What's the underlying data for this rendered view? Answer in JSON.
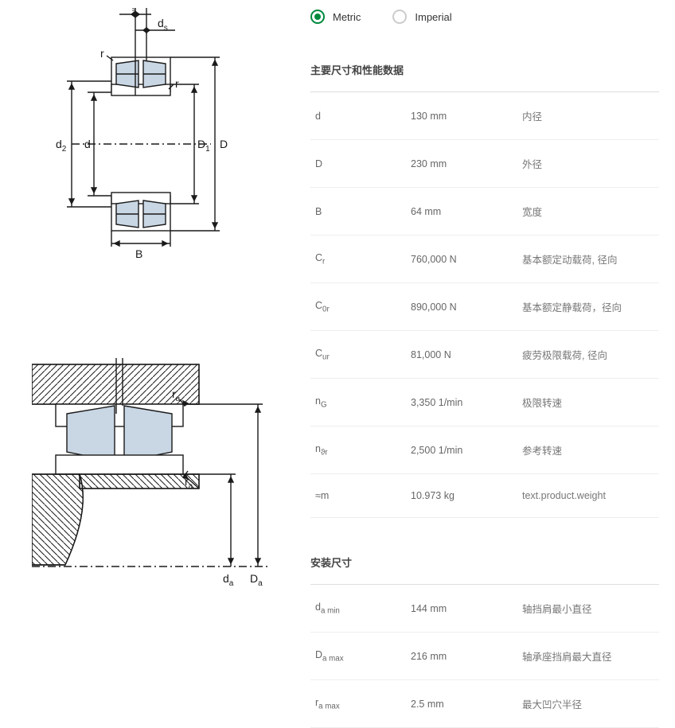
{
  "units": {
    "metric_label": "Metric",
    "imperial_label": "Imperial",
    "selected": "metric"
  },
  "sections": {
    "main": {
      "title": "主要尺寸和性能数据",
      "rows": [
        {
          "sym": "d",
          "sub": "",
          "val": "130 mm",
          "desc": "内径"
        },
        {
          "sym": "D",
          "sub": "",
          "val": "230 mm",
          "desc": "外径"
        },
        {
          "sym": "B",
          "sub": "",
          "val": "64 mm",
          "desc": "宽度"
        },
        {
          "sym": "C",
          "sub": "r",
          "val": "760,000 N",
          "desc": "基本额定动载荷, 径向"
        },
        {
          "sym": "C",
          "sub": "0r",
          "val": "890,000 N",
          "desc": "基本额定静载荷，径向"
        },
        {
          "sym": "C",
          "sub": "ur",
          "val": "81,000 N",
          "desc": "疲劳极限载荷, 径向"
        },
        {
          "sym": "n",
          "sub": "G",
          "val": "3,350 1/min",
          "desc": "极限转速"
        },
        {
          "sym": "n",
          "sub": "ϑr",
          "val": "2,500 1/min",
          "desc": "参考转速"
        },
        {
          "sym": "≈m",
          "sub": "",
          "val": "10.973 kg",
          "desc": "text.product.weight"
        }
      ]
    },
    "mounting": {
      "title": "安装尺寸",
      "rows": [
        {
          "sym": "d",
          "sub": "a min",
          "val": "144 mm",
          "desc": "轴挡肩最小直径"
        },
        {
          "sym": "D",
          "sub": "a max",
          "val": "216 mm",
          "desc": "轴承座挡肩最大直径"
        },
        {
          "sym": "r",
          "sub": "a max",
          "val": "2.5 mm",
          "desc": "最大凹穴半径"
        }
      ]
    }
  },
  "diagram1": {
    "labels": {
      "ns": "n",
      "ns_sub": "s",
      "ds": "d",
      "ds_sub": "s",
      "r1": "r",
      "r2": "r",
      "d2": "d",
      "d2_sub": "2",
      "d": "d",
      "D1": "D",
      "D1_sub": "1",
      "D": "D",
      "B": "B"
    },
    "colors": {
      "stroke": "#1a1a1a",
      "fill_roller": "#c9d6e3",
      "fill_ring": "#ffffff"
    }
  },
  "diagram2": {
    "labels": {
      "ra1": "r",
      "ra1_sub": "a",
      "ra2": "r",
      "ra2_sub": "a",
      "da": "d",
      "da_sub": "a",
      "Da": "D",
      "Da_sub": "a"
    },
    "colors": {
      "stroke": "#1a1a1a",
      "hatch": "#1a1a1a",
      "fill_roller": "#c9d6e3"
    }
  }
}
